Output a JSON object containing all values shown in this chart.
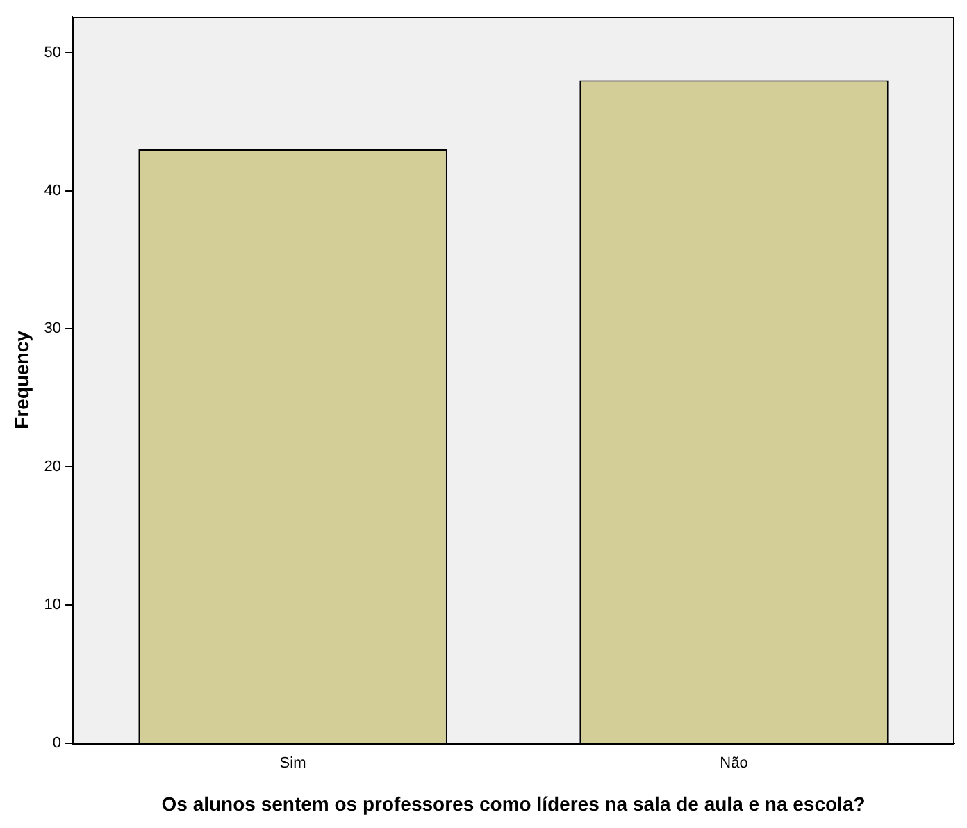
{
  "chart_data": {
    "type": "bar",
    "xlabel": "Os alunos sentem os professores como líderes na sala de aula e na escola?",
    "ylabel": "Frequency",
    "categories": [
      "Sim",
      "Não"
    ],
    "values": [
      43,
      48
    ],
    "color": "#d3ce97",
    "ylim": [
      0,
      52.6
    ],
    "yticks": [
      0,
      10,
      20,
      30,
      40,
      50
    ],
    "grid": false,
    "legend": false
  }
}
